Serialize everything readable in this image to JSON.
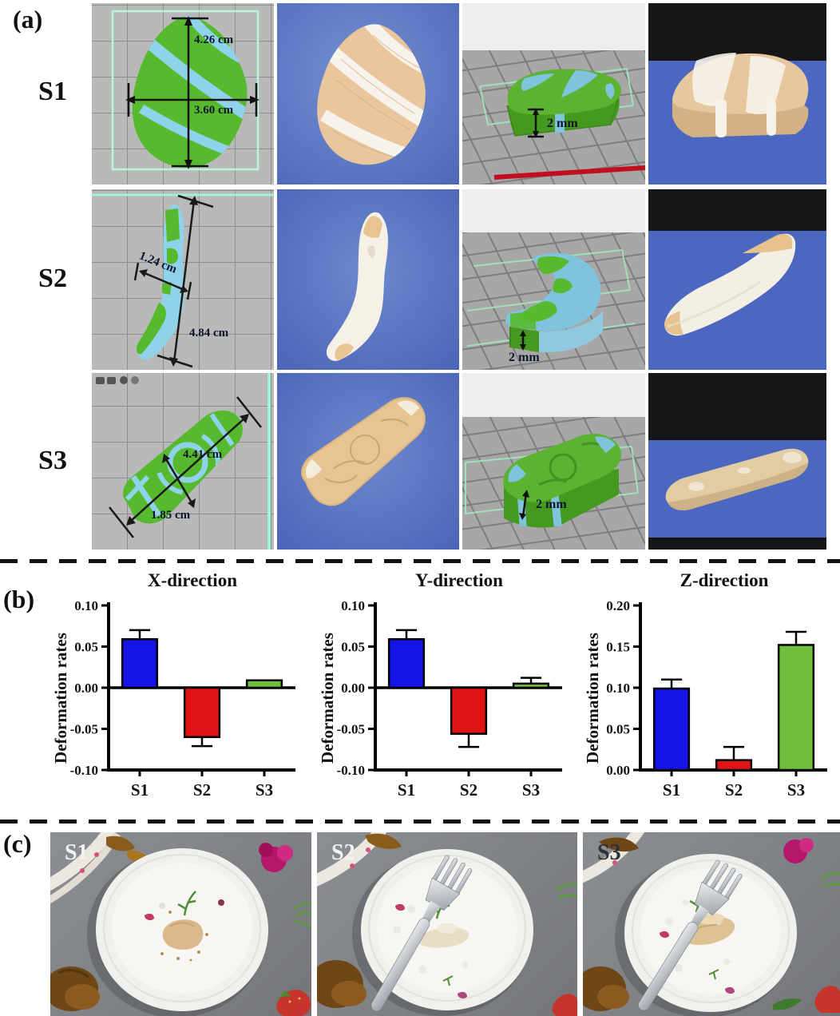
{
  "panels": {
    "a_label": "(a)",
    "b_label": "(b)",
    "c_label": "(c)"
  },
  "panel_a": {
    "rows": [
      {
        "label": "S1",
        "dim_height": "4.26 cm",
        "dim_width": "3.60 cm",
        "thickness": "2 mm"
      },
      {
        "label": "S2",
        "dim_width": "1.24 cm",
        "dim_length": "4.84 cm",
        "thickness": "2 mm"
      },
      {
        "label": "S3",
        "dim_length": "4.41 cm",
        "dim_width": "1.85 cm",
        "thickness": "2 mm"
      }
    ]
  },
  "chart_data": [
    {
      "type": "bar",
      "title": "X-direction",
      "ylabel": "Deformation rates",
      "categories": [
        "S1",
        "S2",
        "S3"
      ],
      "values": [
        0.059,
        -0.06,
        0.009
      ],
      "errors": [
        0.011,
        0.011,
        0.0
      ],
      "bar_colors": [
        "#1414e6",
        "#e01414",
        "#6fbf3a"
      ],
      "ylim": [
        -0.1,
        0.1
      ],
      "yticks": [
        0.1,
        0.05,
        0.0,
        -0.05,
        -0.1
      ]
    },
    {
      "type": "bar",
      "title": "Y-direction",
      "ylabel": "Deformation rates",
      "categories": [
        "S1",
        "S2",
        "S3"
      ],
      "values": [
        0.059,
        -0.056,
        0.005
      ],
      "errors": [
        0.011,
        0.016,
        0.007
      ],
      "bar_colors": [
        "#1414e6",
        "#e01414",
        "#6fbf3a"
      ],
      "ylim": [
        -0.1,
        0.1
      ],
      "yticks": [
        0.1,
        0.05,
        0.0,
        -0.05,
        -0.1
      ]
    },
    {
      "type": "bar",
      "title": "Z-direction",
      "ylabel": "Deformation rates",
      "categories": [
        "S1",
        "S2",
        "S3"
      ],
      "values": [
        0.099,
        0.012,
        0.152
      ],
      "errors": [
        0.011,
        0.016,
        0.016
      ],
      "bar_colors": [
        "#1414e6",
        "#e01414",
        "#6fbf3a"
      ],
      "ylim": [
        0.0,
        0.2
      ],
      "yticks": [
        0.0,
        0.05,
        0.1,
        0.15,
        0.2
      ]
    }
  ],
  "panel_c": {
    "items": [
      {
        "label": "S1"
      },
      {
        "label": "S2"
      },
      {
        "label": "S3"
      }
    ]
  }
}
